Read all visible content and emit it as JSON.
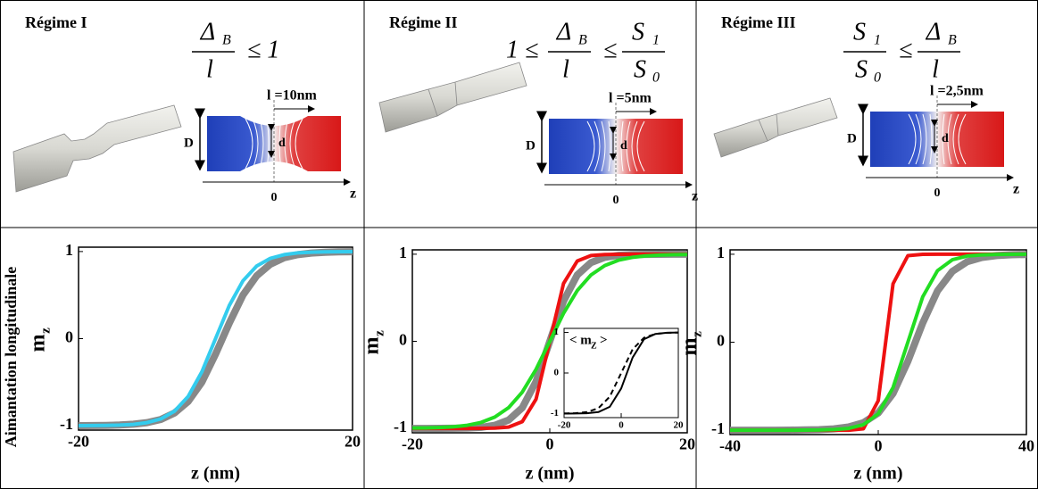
{
  "side_label": "Aimantation  longitudinale",
  "panels": [
    {
      "regime": "Régime I",
      "formula": [
        {
          "num": "Δ",
          "num_sub": "B",
          "den": "l"
        },
        "≤ 1"
      ],
      "length_label": "l =10nm",
      "D": "D",
      "d": "d",
      "origin": "0",
      "axis": "z"
    },
    {
      "regime": "Régime II",
      "formula": [
        "1 ≤",
        {
          "num": "Δ",
          "num_sub": "B",
          "den": "l"
        },
        "≤",
        {
          "num": "S",
          "num_sub": "1",
          "den": "S",
          "den_sub": "0"
        }
      ],
      "length_label": "l =5nm",
      "D": "D",
      "d": "d",
      "origin": "0",
      "axis": "z"
    },
    {
      "regime": "Régime III",
      "formula": [
        {
          "num": "S",
          "num_sub": "1",
          "den": "S",
          "den_sub": "0"
        },
        "≤",
        {
          "num": "Δ",
          "num_sub": "B",
          "den": "l"
        }
      ],
      "length_label": "l =2,5nm",
      "D": "D",
      "d": "d",
      "origin": "0",
      "axis": "z"
    }
  ],
  "chart_data": [
    {
      "type": "line",
      "xlabel": "z (nm)",
      "ylabel": "m",
      "ylabel_sub": "z",
      "x": [
        -20,
        -18,
        -16,
        -14,
        -12,
        -10,
        -8,
        -6,
        -4,
        -2,
        0,
        2,
        4,
        6,
        8,
        10,
        12,
        14,
        16,
        18,
        20
      ],
      "xlim": [
        -20,
        20
      ],
      "xticks": [
        -20,
        20
      ],
      "ylim": [
        -1.05,
        1.05
      ],
      "yticks": [
        -1,
        0,
        1
      ],
      "series": [
        {
          "color": "#888888",
          "values": [
            -0.999,
            -0.998,
            -0.996,
            -0.992,
            -0.982,
            -0.964,
            -0.928,
            -0.854,
            -0.721,
            -0.5,
            -0.178,
            0.178,
            0.5,
            0.721,
            0.854,
            0.928,
            0.964,
            0.982,
            0.992,
            0.996,
            0.998
          ]
        },
        {
          "color": "#33ccee",
          "values": [
            -0.999,
            -0.998,
            -0.997,
            -0.993,
            -0.984,
            -0.964,
            -0.922,
            -0.834,
            -0.664,
            -0.38,
            0,
            0.38,
            0.664,
            0.834,
            0.922,
            0.964,
            0.984,
            0.993,
            0.997,
            0.998,
            0.999
          ]
        }
      ]
    },
    {
      "type": "line",
      "xlabel": "z (nm)",
      "ylabel": "m",
      "ylabel_sub": "z",
      "x": [
        -20,
        -18,
        -16,
        -14,
        -12,
        -10,
        -8,
        -6,
        -4,
        -2,
        0,
        2,
        4,
        6,
        8,
        10,
        12,
        14,
        16,
        18,
        20
      ],
      "xlim": [
        -20,
        20
      ],
      "xticks": [
        -20,
        0,
        20
      ],
      "ylim": [
        -1.05,
        1.05
      ],
      "yticks": [
        -1,
        0,
        1
      ],
      "series": [
        {
          "color": "#888888",
          "values": [
            -1,
            -1,
            -0.999,
            -0.998,
            -0.995,
            -0.987,
            -0.964,
            -0.905,
            -0.762,
            -0.462,
            0,
            0.462,
            0.762,
            0.905,
            0.964,
            0.987,
            0.995,
            0.998,
            0.999,
            1,
            1
          ]
        },
        {
          "color": "#ee1111",
          "values": [
            -1,
            -1,
            -1,
            -1,
            -1,
            -0.999,
            -0.997,
            -0.984,
            -0.922,
            -0.664,
            0,
            0.664,
            0.922,
            0.984,
            0.997,
            0.999,
            1,
            1,
            1,
            1,
            1
          ]
        },
        {
          "color": "#22dd22",
          "values": [
            -0.997,
            -0.995,
            -0.99,
            -0.981,
            -0.964,
            -0.931,
            -0.87,
            -0.762,
            -0.583,
            -0.322,
            0,
            0.322,
            0.583,
            0.762,
            0.87,
            0.931,
            0.964,
            0.981,
            0.99,
            0.995,
            0.997
          ]
        }
      ],
      "inset": {
        "ylabel": "< m",
        "ylabel_sub": "Z",
        "ylabel_suffix": ">",
        "x": [
          -20,
          -16,
          -12,
          -8,
          -4,
          0,
          4,
          8,
          12,
          16,
          20
        ],
        "xlim": [
          -20,
          20
        ],
        "xticks": [
          -20,
          0,
          20
        ],
        "ylim": [
          -1.1,
          1.1
        ],
        "yticks": [
          -1,
          0,
          1
        ],
        "series": [
          {
            "color": "#000000",
            "values": [
              -1,
              -0.998,
              -0.993,
              -0.964,
              -0.834,
              -0.38,
              0.38,
              0.834,
              0.964,
              0.993,
              0.998
            ]
          },
          {
            "color": "#000000",
            "dashed": true,
            "values": [
              -0.997,
              -0.99,
              -0.964,
              -0.87,
              -0.583,
              0,
              0.583,
              0.87,
              0.964,
              0.99,
              0.997
            ]
          }
        ]
      }
    },
    {
      "type": "line",
      "xlabel": "z (nm)",
      "ylabel": "m",
      "ylabel_sub": "z",
      "x": [
        -40,
        -36,
        -32,
        -28,
        -24,
        -20,
        -16,
        -12,
        -8,
        -4,
        0,
        4,
        8,
        12,
        16,
        20,
        24,
        28,
        32,
        36,
        40
      ],
      "xlim": [
        -40,
        40
      ],
      "xticks": [
        -40,
        0,
        40
      ],
      "ylim": [
        -1.05,
        1.05
      ],
      "yticks": [
        -1,
        0,
        1
      ],
      "series": [
        {
          "color": "#888888",
          "values": [
            -1,
            -1,
            -1,
            -1,
            -0.999,
            -0.997,
            -0.994,
            -0.985,
            -0.964,
            -0.915,
            -0.804,
            -0.583,
            -0.217,
            0.217,
            0.583,
            0.804,
            0.915,
            0.964,
            0.985,
            0.994,
            0.997
          ]
        },
        {
          "color": "#ee1111",
          "values": [
            -1,
            -1,
            -1,
            -1,
            -1,
            -1,
            -1,
            -1,
            -1,
            -0.984,
            -0.664,
            0.664,
            0.984,
            0.999,
            1,
            1,
            1,
            1,
            1,
            1,
            1
          ]
        },
        {
          "color": "#22dd22",
          "values": [
            -1,
            -1,
            -1,
            -1,
            -1,
            -0.999,
            -0.998,
            -0.993,
            -0.98,
            -0.937,
            -0.814,
            -0.515,
            0,
            0.515,
            0.814,
            0.937,
            0.98,
            0.993,
            0.998,
            0.999,
            1
          ]
        }
      ]
    }
  ]
}
